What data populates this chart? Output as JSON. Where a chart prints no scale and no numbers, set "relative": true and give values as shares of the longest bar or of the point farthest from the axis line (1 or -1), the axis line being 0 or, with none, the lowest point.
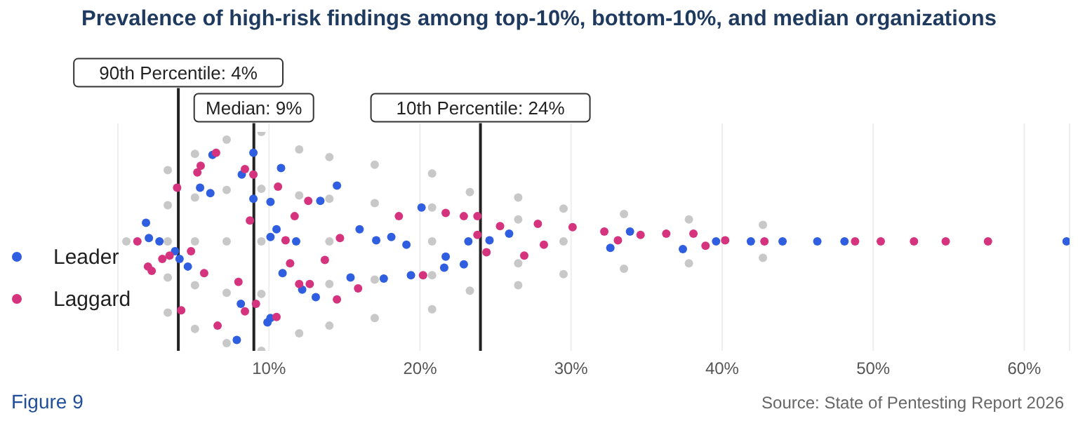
{
  "chart_data": {
    "type": "scatter",
    "title": "Prevalence of high-risk findings among top-10%, bottom-10%, and median organizations",
    "series": [
      {
        "color": "#c8c8c8",
        "x": [
          0.56,
          3.3,
          3.3,
          3.3,
          3.3,
          3.3,
          5.1,
          5.1,
          5.1,
          5.1,
          5.1,
          7.2,
          7.2,
          7.2,
          7.2,
          7.2,
          9.5,
          9.5,
          9.5,
          9.5,
          9.5,
          12.0,
          12.0,
          12.0,
          14.0,
          14.0,
          14.0,
          14.0,
          14.0,
          17.0,
          17.0,
          17.0,
          17.0,
          20.8,
          20.8,
          20.8,
          20.8,
          20.8,
          23.3,
          23.3,
          26.5,
          26.5,
          26.5,
          26.5,
          29.5,
          29.5,
          29.5,
          33.5,
          33.5,
          37.8,
          37.8,
          42.7,
          42.7
        ],
        "values": [
          0.5,
          0.5,
          0.665,
          0.335,
          0.825,
          0.175,
          0.5,
          0.7,
          0.3,
          0.9,
          0.1,
          0.5,
          0.735,
          0.265,
          0.965,
          0.035,
          0.5,
          0.74,
          0.26,
          1,
          0,
          0.71,
          0.92,
          0.08,
          0.5,
          0.695,
          0.305,
          0.885,
          0.115,
          0.675,
          0.325,
          0.85,
          0.15,
          0.5,
          0.655,
          0.345,
          0.81,
          0.19,
          0.725,
          0.275,
          0.7,
          0.3,
          0.6,
          0.4,
          0.5,
          0.65,
          0.35,
          0.625,
          0.375,
          0.6,
          0.4,
          0.575,
          0.425
        ]
      },
      {
        "name": "Leader",
        "color": "#2f5fe0",
        "x": [
          1.86,
          2.05,
          2.75,
          3.78,
          4.08,
          4.63,
          5.44,
          6.12,
          6.26,
          8.97,
          8.97,
          8.2,
          8.14,
          7.87,
          9.9,
          10.1,
          10.1,
          10.5,
          10.1,
          11.8,
          10.9,
          10.8,
          12.2,
          13.1,
          14.5,
          16.0,
          17.1,
          17.6,
          15.4,
          18.1,
          13.4,
          20.1,
          19.1,
          19.4,
          21.6,
          21.7,
          22.9,
          23.2,
          24.6,
          25.9,
          32.6,
          33.9,
          37.4,
          39.6,
          41.9,
          44.0,
          46.3,
          48.1,
          62.8
        ],
        "values": [
          0.585,
          0.515,
          0.5,
          0.455,
          0.42,
          0.385,
          0.745,
          0.72,
          0.895,
          0.905,
          0.695,
          0.805,
          0.215,
          0.05,
          0.13,
          0.15,
          0.68,
          0.555,
          0.52,
          0.5,
          0.355,
          0.835,
          0.28,
          0.245,
          0.755,
          0.555,
          0.505,
          0.33,
          0.335,
          0.52,
          0.685,
          0.655,
          0.485,
          0.345,
          0.38,
          0.43,
          0.395,
          0.5,
          0.505,
          0.535,
          0.47,
          0.545,
          0.465,
          0.5,
          0.5,
          0.5,
          0.5,
          0.5,
          0.5
        ]
      },
      {
        "name": "Laggard",
        "color": "#d6337f",
        "x": [
          1.29,
          1.99,
          2.24,
          2.94,
          3.42,
          4.19,
          3.92,
          5.26,
          5.48,
          6.5,
          5.71,
          4.84,
          6.6,
          7.98,
          8.41,
          8.97,
          8.74,
          9.14,
          8.41,
          10.6,
          11.7,
          11.1,
          11.4,
          12.0,
          12.6,
          14.7,
          14.5,
          15.9,
          13.7,
          12.7,
          10.5,
          18.6,
          21.7,
          22.9,
          23.8,
          20.2,
          23.8,
          24.4,
          25.3,
          26.9,
          27.8,
          28.2,
          30.1,
          32.2,
          33.1,
          34.6,
          36.3,
          38.1,
          38.9,
          40.2,
          42.8,
          48.8,
          50.5,
          52.7,
          54.8,
          57.6
        ],
        "values": [
          0.5,
          0.385,
          0.365,
          0.42,
          0.435,
          0.185,
          0.745,
          0.815,
          0.845,
          0.905,
          0.355,
          0.455,
          0.115,
          0.315,
          0.83,
          0.805,
          0.595,
          0.215,
          0.18,
          0.75,
          0.615,
          0.505,
          0.4,
          0.305,
          0.685,
          0.515,
          0.235,
          0.285,
          0.415,
          0.305,
          0.155,
          0.615,
          0.63,
          0.615,
          0.615,
          0.345,
          0.53,
          0.45,
          0.57,
          0.435,
          0.58,
          0.485,
          0.565,
          0.545,
          0.505,
          0.53,
          0.535,
          0.535,
          0.48,
          0.505,
          0.5,
          0.5,
          0.5,
          0.5,
          0.5,
          0.5
        ]
      }
    ],
    "xlim": [
      0,
      63
    ],
    "xticks": [
      {
        "value": 10,
        "label": "10%"
      },
      {
        "value": 20,
        "label": "20%"
      },
      {
        "value": 30,
        "label": "30%"
      },
      {
        "value": 40,
        "label": "40%"
      },
      {
        "value": 50,
        "label": "50%"
      },
      {
        "value": 60,
        "label": "60%"
      }
    ],
    "relative": true,
    "tick_labels": "x",
    "grid": "x",
    "legend": "bottom left",
    "marker": "circle",
    "ref_lines": [
      {
        "axis": "x",
        "value": 4,
        "label": "90th Percentile: 4%",
        "color": "#222222"
      },
      {
        "axis": "x",
        "value": 9,
        "label": "Median: 9%",
        "color": "#222222"
      },
      {
        "axis": "x",
        "value": 24,
        "label": "10th Percentile: 24%",
        "color": "#222222"
      }
    ],
    "annotations": [
      "Figure 9",
      "Source: State of Pentesting Report 2026"
    ]
  }
}
